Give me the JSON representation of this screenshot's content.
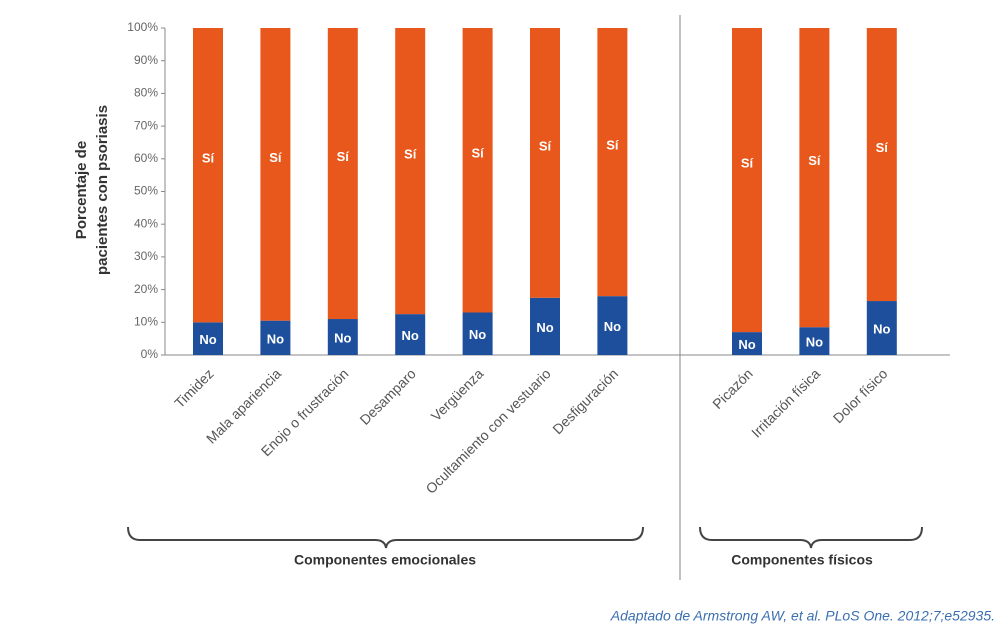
{
  "chart_data": [
    {
      "type": "bar",
      "stacked": true,
      "ylabel_lines": [
        "Porcentaje de",
        "pacientes con psoriasis"
      ],
      "xlabel": "Componentes emocionales",
      "categories": [
        "Timidez",
        "Mala apariencia",
        "Enojo o frustración",
        "Desamparo",
        "Vergüenza",
        "Ocultamiento con vestuario",
        "Desfiguración"
      ],
      "series": [
        {
          "name": "No",
          "color": "#1d4f9c",
          "values": [
            10,
            10.5,
            11,
            12.5,
            13,
            17.5,
            18
          ]
        },
        {
          "name": "Sí",
          "color": "#e8581c",
          "values": [
            90,
            89.5,
            89,
            87.5,
            87,
            82.5,
            82
          ]
        }
      ],
      "ylim": [
        0,
        100
      ],
      "yticks": [
        {
          "value": 0,
          "label": "0%"
        },
        {
          "value": 10,
          "label": "10%"
        },
        {
          "value": 20,
          "label": "20%"
        },
        {
          "value": 30,
          "label": "30%"
        },
        {
          "value": 40,
          "label": "40%"
        },
        {
          "value": 50,
          "label": "50%"
        },
        {
          "value": 60,
          "label": "60%"
        },
        {
          "value": 70,
          "label": "70%"
        },
        {
          "value": 80,
          "label": "80%"
        },
        {
          "value": 90,
          "label": "90%"
        },
        {
          "value": 100,
          "label": "100%"
        }
      ]
    },
    {
      "type": "bar",
      "stacked": true,
      "xlabel": "Componentes físicos",
      "categories": [
        "Picazón",
        "Irritación física",
        "Dolor físico"
      ],
      "series": [
        {
          "name": "No",
          "color": "#1d4f9c",
          "values": [
            7,
            8.5,
            16.5
          ]
        },
        {
          "name": "Sí",
          "color": "#e8581c",
          "values": [
            93,
            91.5,
            83.5
          ]
        }
      ],
      "ylim": [
        0,
        100
      ]
    }
  ],
  "source": "Adaptado de Armstrong AW, et al. PLoS One. 2012;7;e52935."
}
